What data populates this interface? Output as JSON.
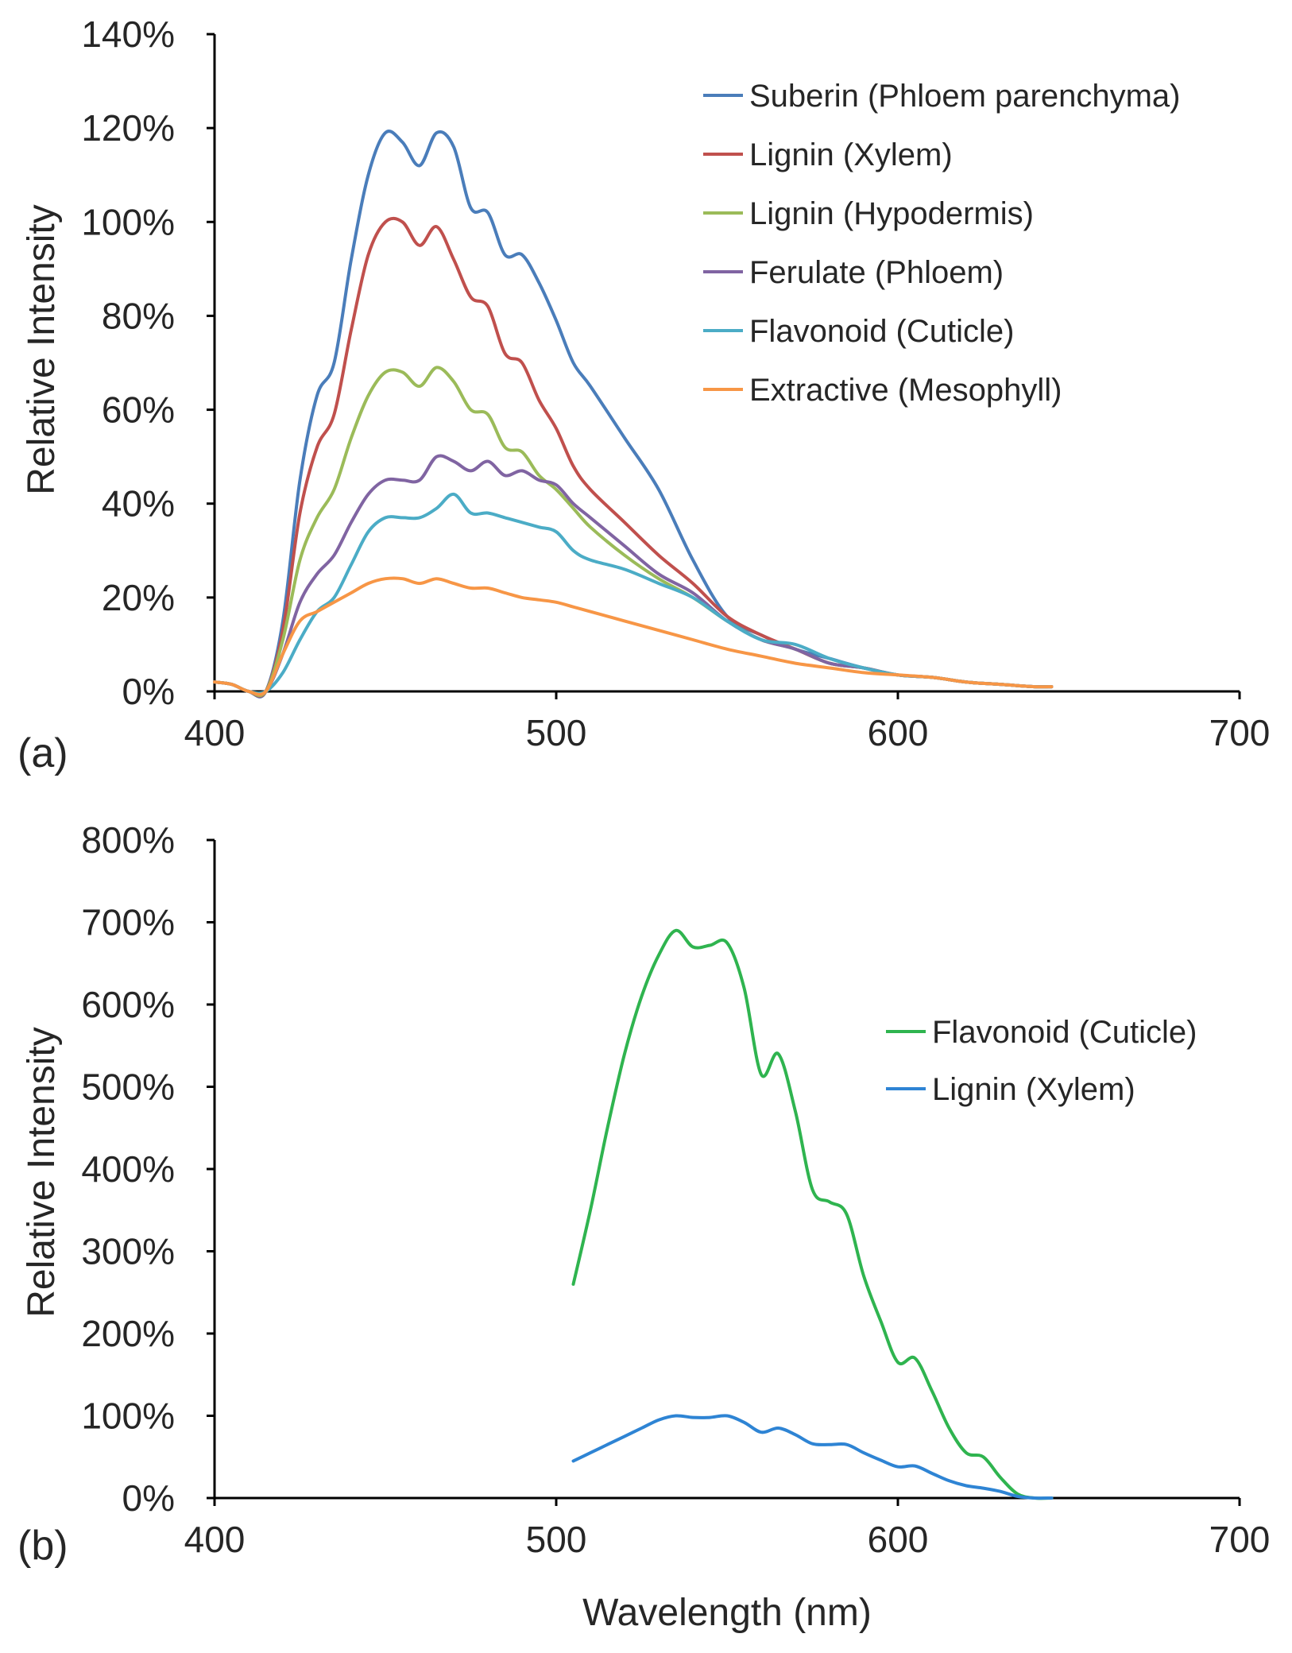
{
  "chart_data": [
    {
      "type": "line",
      "panel_label": "(a)",
      "title": "",
      "xlabel": "",
      "ylabel": "Relative Intensity",
      "xlim": [
        400,
        700
      ],
      "ylim": [
        0,
        140
      ],
      "x_ticks": [
        "400",
        "500",
        "600",
        "700"
      ],
      "y_ticks": [
        "0%",
        "20%",
        "40%",
        "60%",
        "80%",
        "100%",
        "120%",
        "140%"
      ],
      "grid": false,
      "legend_position": "top-right",
      "series": [
        {
          "name": "Suberin (Phloem parenchyma)",
          "color": "#4a7dba",
          "x": [
            400,
            405,
            410,
            415,
            420,
            425,
            430,
            435,
            440,
            445,
            450,
            455,
            460,
            465,
            470,
            475,
            480,
            485,
            490,
            495,
            500,
            505,
            510,
            520,
            530,
            540,
            550,
            560,
            570,
            580,
            590,
            600,
            610,
            620,
            630,
            640,
            645
          ],
          "y": [
            2,
            1.5,
            0,
            0,
            15,
            45,
            63,
            70,
            92,
            110,
            119,
            117,
            112,
            119,
            116,
            103,
            102,
            93,
            93,
            87,
            79,
            70,
            65,
            54,
            43,
            28,
            16,
            12,
            9,
            7,
            5,
            3.5,
            3,
            2,
            1.5,
            1,
            1
          ]
        },
        {
          "name": "Lignin (Xylem)",
          "color": "#c0504d",
          "x": [
            400,
            405,
            410,
            415,
            420,
            425,
            430,
            435,
            440,
            445,
            450,
            455,
            460,
            465,
            470,
            475,
            480,
            485,
            490,
            495,
            500,
            505,
            510,
            520,
            530,
            540,
            550,
            560,
            570,
            580,
            590,
            600,
            610,
            620,
            630,
            640,
            645
          ],
          "y": [
            2,
            1.5,
            0,
            0,
            13,
            38,
            52,
            59,
            77,
            93,
            100,
            100,
            95,
            99,
            92,
            84,
            82,
            72,
            70,
            62,
            56,
            48,
            43,
            36,
            29,
            23,
            16,
            12,
            9,
            6,
            5,
            3.5,
            3,
            2,
            1.5,
            1,
            1
          ]
        },
        {
          "name": "Lignin (Hypodermis)",
          "color": "#9bbb59",
          "x": [
            400,
            405,
            410,
            415,
            420,
            425,
            430,
            435,
            440,
            445,
            450,
            455,
            460,
            465,
            470,
            475,
            480,
            485,
            490,
            495,
            500,
            505,
            510,
            520,
            530,
            540,
            550,
            560,
            570,
            580,
            590,
            600,
            610,
            620,
            630,
            640,
            645
          ],
          "y": [
            2,
            1.5,
            0,
            0,
            11,
            28,
            37,
            43,
            54,
            63,
            68,
            68,
            65,
            69,
            66,
            60,
            59,
            52,
            51,
            46,
            43,
            39,
            35,
            29,
            24,
            20,
            15,
            11,
            9,
            6,
            5,
            3.5,
            3,
            2,
            1.5,
            1,
            1
          ]
        },
        {
          "name": "Ferulate (Phloem)",
          "color": "#8064a2",
          "x": [
            400,
            405,
            410,
            415,
            420,
            425,
            430,
            435,
            440,
            445,
            450,
            455,
            460,
            465,
            470,
            475,
            480,
            485,
            490,
            495,
            500,
            505,
            510,
            520,
            530,
            540,
            550,
            560,
            570,
            580,
            590,
            600,
            610,
            620,
            630,
            640,
            645
          ],
          "y": [
            2,
            1.5,
            0,
            0,
            8,
            19,
            25,
            29,
            36,
            42,
            45,
            45,
            45,
            50,
            49,
            47,
            49,
            46,
            47,
            45,
            44,
            40,
            37,
            31,
            25,
            21,
            15,
            11,
            9,
            6,
            5,
            3.5,
            3,
            2,
            1.5,
            1,
            1
          ]
        },
        {
          "name": "Flavonoid (Cuticle)",
          "color": "#4bacc6",
          "x": [
            400,
            405,
            410,
            415,
            420,
            425,
            430,
            435,
            440,
            445,
            450,
            455,
            460,
            465,
            470,
            475,
            480,
            485,
            490,
            495,
            500,
            505,
            510,
            520,
            530,
            540,
            550,
            560,
            570,
            580,
            590,
            600,
            610,
            620,
            630,
            640,
            645
          ],
          "y": [
            2,
            1.5,
            0,
            0,
            4,
            11,
            17,
            20,
            27,
            34,
            37,
            37,
            37,
            39,
            42,
            38,
            38,
            37,
            36,
            35,
            34,
            30,
            28,
            26,
            23,
            20,
            15,
            11,
            10,
            7,
            5,
            3.5,
            3,
            2,
            1.5,
            1,
            1
          ]
        },
        {
          "name": "Extractive (Mesophyll)",
          "color": "#f79646",
          "x": [
            400,
            405,
            410,
            415,
            420,
            425,
            430,
            435,
            440,
            445,
            450,
            455,
            460,
            465,
            470,
            475,
            480,
            485,
            490,
            495,
            500,
            505,
            510,
            520,
            530,
            540,
            550,
            560,
            570,
            580,
            590,
            600,
            610,
            620,
            630,
            640,
            645
          ],
          "y": [
            2,
            1.5,
            0,
            0,
            8,
            15,
            17,
            19,
            21,
            23,
            24,
            24,
            23,
            24,
            23,
            22,
            22,
            21,
            20,
            19.5,
            19,
            18,
            17,
            15,
            13,
            11,
            9,
            7.5,
            6,
            5,
            4,
            3.5,
            3,
            2,
            1.5,
            1,
            1
          ]
        }
      ]
    },
    {
      "type": "line",
      "panel_label": "(b)",
      "title": "",
      "xlabel": "Wavelength (nm)",
      "ylabel": "Relative Intensity",
      "xlim": [
        400,
        700
      ],
      "ylim": [
        0,
        800
      ],
      "x_ticks": [
        "400",
        "500",
        "600",
        "700"
      ],
      "y_ticks": [
        "0%",
        "100%",
        "200%",
        "300%",
        "400%",
        "500%",
        "600%",
        "700%",
        "800%"
      ],
      "grid": false,
      "legend_position": "right",
      "series": [
        {
          "name": "Flavonoid (Cuticle)",
          "color": "#2fb44f",
          "x": [
            505,
            510,
            515,
            520,
            525,
            530,
            535,
            540,
            545,
            550,
            555,
            560,
            565,
            570,
            575,
            580,
            585,
            590,
            595,
            600,
            605,
            610,
            615,
            620,
            625,
            630,
            635,
            640,
            645
          ],
          "y": [
            260,
            350,
            450,
            540,
            610,
            660,
            690,
            670,
            672,
            675,
            620,
            515,
            540,
            470,
            375,
            360,
            345,
            270,
            215,
            165,
            170,
            130,
            85,
            55,
            50,
            25,
            5,
            0,
            0
          ]
        },
        {
          "name": "Lignin (Xylem)",
          "color": "#2e84d4",
          "x": [
            505,
            510,
            515,
            520,
            525,
            530,
            535,
            540,
            545,
            550,
            555,
            560,
            565,
            570,
            575,
            580,
            585,
            590,
            595,
            600,
            605,
            610,
            615,
            620,
            625,
            630,
            635,
            640,
            645
          ],
          "y": [
            45,
            55,
            65,
            75,
            85,
            95,
            100,
            98,
            98,
            100,
            92,
            80,
            85,
            77,
            66,
            65,
            65,
            55,
            46,
            38,
            39,
            30,
            21,
            15,
            12,
            8,
            2,
            0,
            0
          ]
        }
      ]
    }
  ]
}
